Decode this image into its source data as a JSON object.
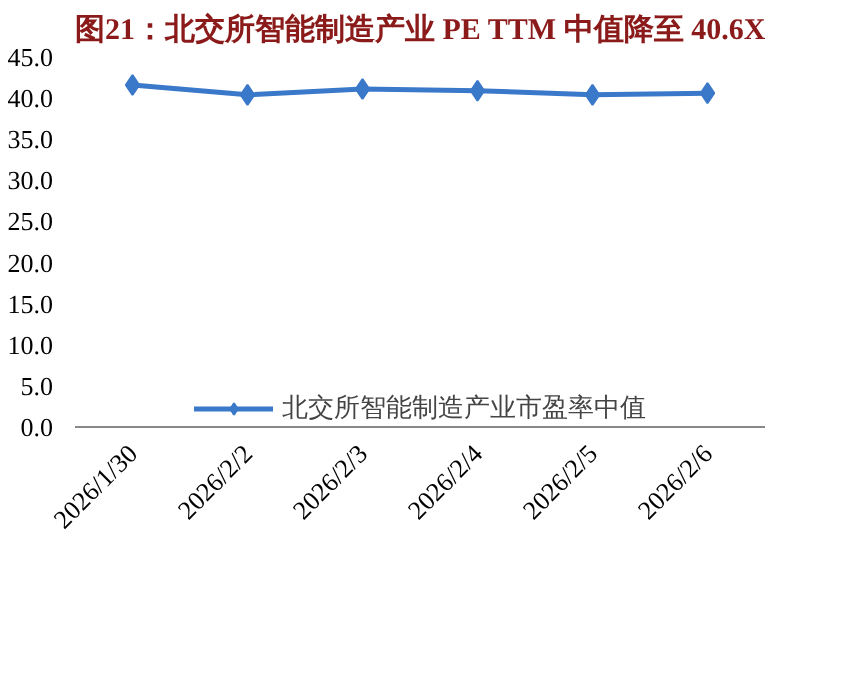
{
  "chart_data": {
    "type": "line",
    "title": "图21：北交所智能制造产业 PE TTM 中值降至 40.6X",
    "categories": [
      "2026/1/30",
      "2026/2/2",
      "2026/2/3",
      "2026/2/4",
      "2026/2/5",
      "2026/2/6"
    ],
    "series": [
      {
        "name": "北交所智能制造产业市盈率中值",
        "color": "#3a78c9",
        "values": [
          41.6,
          40.4,
          41.1,
          40.9,
          40.4,
          40.6
        ]
      }
    ],
    "ylim": [
      0,
      45
    ],
    "yticks": [
      {
        "value": 0,
        "label": "0.0"
      },
      {
        "value": 5,
        "label": "5.0"
      },
      {
        "value": 10,
        "label": "10.0"
      },
      {
        "value": 15,
        "label": "15.0"
      },
      {
        "value": 20,
        "label": "20.0"
      },
      {
        "value": 25,
        "label": "25.0"
      },
      {
        "value": 30,
        "label": "30.0"
      },
      {
        "value": 35,
        "label": "35.0"
      },
      {
        "value": 40,
        "label": "40.0"
      },
      {
        "value": 45,
        "label": "45.0"
      }
    ],
    "grid": false,
    "legend": "bottom",
    "marker": "diamond",
    "line_style": "solid"
  }
}
